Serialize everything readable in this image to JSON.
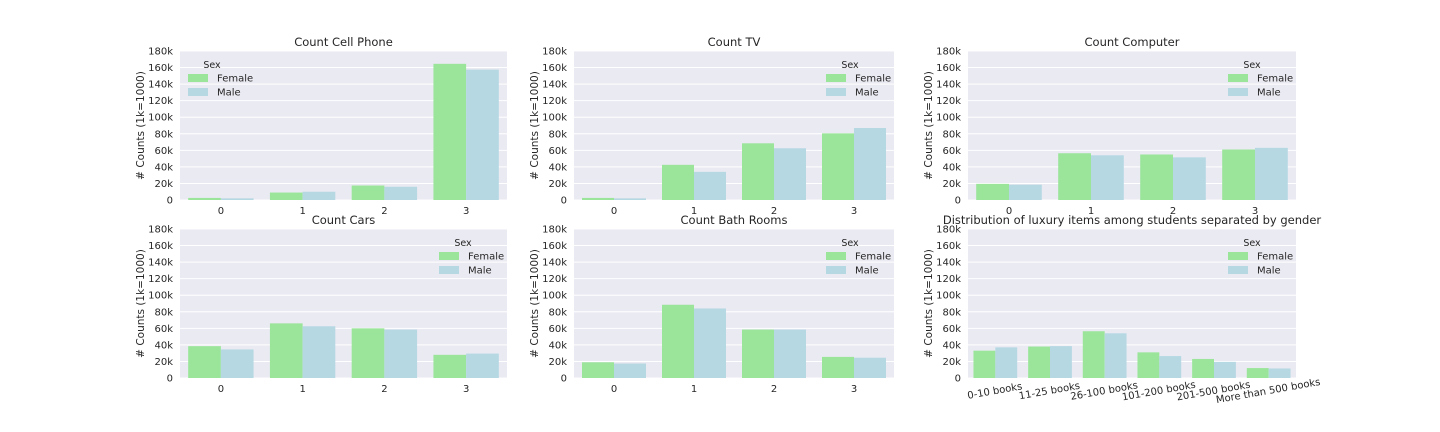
{
  "colors": {
    "female": "#9be59b",
    "male": "#b5d8e3",
    "plot_bg": "#eaeaf2",
    "grid": "#ffffff",
    "text": "#262626"
  },
  "chart_data": [
    {
      "type": "bar",
      "title": "Count Cell Phone",
      "ylabel": "# Counts (1k=1000)",
      "xlabel": "",
      "ylim": [
        0,
        180000
      ],
      "yticks": [
        0,
        20000,
        40000,
        60000,
        80000,
        100000,
        120000,
        140000,
        160000,
        180000
      ],
      "yticklabels": [
        "0",
        "20k",
        "40k",
        "60k",
        "80k",
        "100k",
        "120k",
        "140k",
        "160k",
        "180k"
      ],
      "categories": [
        "0",
        "1",
        "2",
        "3"
      ],
      "legend": {
        "title": "Sex",
        "position": "top-left"
      },
      "series": [
        {
          "name": "Female",
          "values": [
            2500,
            9000,
            17500,
            164500
          ]
        },
        {
          "name": "Male",
          "values": [
            2000,
            10000,
            16000,
            157500
          ]
        }
      ]
    },
    {
      "type": "bar",
      "title": "Count TV",
      "ylabel": "# Counts (1k=1000)",
      "xlabel": "",
      "ylim": [
        0,
        180000
      ],
      "yticks": [
        0,
        20000,
        40000,
        60000,
        80000,
        100000,
        120000,
        140000,
        160000,
        180000
      ],
      "yticklabels": [
        "0",
        "20k",
        "40k",
        "60k",
        "80k",
        "100k",
        "120k",
        "140k",
        "160k",
        "180k"
      ],
      "categories": [
        "0",
        "1",
        "2",
        "3"
      ],
      "legend": {
        "title": "Sex",
        "position": "top-right"
      },
      "series": [
        {
          "name": "Female",
          "values": [
            2500,
            42500,
            68500,
            80500
          ]
        },
        {
          "name": "Male",
          "values": [
            2000,
            34000,
            62500,
            87000
          ]
        }
      ]
    },
    {
      "type": "bar",
      "title": "Count Computer",
      "ylabel": "# Counts (1k=1000)",
      "xlabel": "",
      "ylim": [
        0,
        180000
      ],
      "yticks": [
        0,
        20000,
        40000,
        60000,
        80000,
        100000,
        120000,
        140000,
        160000,
        180000
      ],
      "yticklabels": [
        "0",
        "20k",
        "40k",
        "60k",
        "80k",
        "100k",
        "120k",
        "140k",
        "160k",
        "180k"
      ],
      "categories": [
        "0",
        "1",
        "2",
        "3"
      ],
      "legend": {
        "title": "Sex",
        "position": "top-right"
      },
      "series": [
        {
          "name": "Female",
          "values": [
            19500,
            56500,
            55000,
            61000
          ]
        },
        {
          "name": "Male",
          "values": [
            18500,
            54000,
            51500,
            63000
          ]
        }
      ]
    },
    {
      "type": "bar",
      "title": "Count Cars",
      "ylabel": "# Counts (1k=1000)",
      "xlabel": "",
      "ylim": [
        0,
        180000
      ],
      "yticks": [
        0,
        20000,
        40000,
        60000,
        80000,
        100000,
        120000,
        140000,
        160000,
        180000
      ],
      "yticklabels": [
        "0",
        "20k",
        "40k",
        "60k",
        "80k",
        "100k",
        "120k",
        "140k",
        "160k",
        "180k"
      ],
      "categories": [
        "0",
        "1",
        "2",
        "3"
      ],
      "legend": {
        "title": "Sex",
        "position": "top-right"
      },
      "series": [
        {
          "name": "Female",
          "values": [
            38500,
            66000,
            60000,
            28000
          ]
        },
        {
          "name": "Male",
          "values": [
            34500,
            62500,
            58500,
            29500
          ]
        }
      ]
    },
    {
      "type": "bar",
      "title": "Count Bath Rooms",
      "ylabel": "# Counts (1k=1000)",
      "xlabel": "",
      "ylim": [
        0,
        180000
      ],
      "yticks": [
        0,
        20000,
        40000,
        60000,
        80000,
        100000,
        120000,
        140000,
        160000,
        180000
      ],
      "yticklabels": [
        "0",
        "20k",
        "40k",
        "60k",
        "80k",
        "100k",
        "120k",
        "140k",
        "160k",
        "180k"
      ],
      "categories": [
        "0",
        "1",
        "2",
        "3"
      ],
      "legend": {
        "title": "Sex",
        "position": "top-right"
      },
      "series": [
        {
          "name": "Female",
          "values": [
            19000,
            88500,
            58500,
            25500
          ]
        },
        {
          "name": "Male",
          "values": [
            17500,
            84000,
            58500,
            24500
          ]
        }
      ]
    },
    {
      "type": "bar",
      "title": "Distribution of luxury items among students separated by gender",
      "ylabel": "# Counts (1k=1000)",
      "xlabel": "",
      "ylim": [
        0,
        180000
      ],
      "yticks": [
        0,
        20000,
        40000,
        60000,
        80000,
        100000,
        120000,
        140000,
        160000,
        180000
      ],
      "yticklabels": [
        "0",
        "20k",
        "40k",
        "60k",
        "80k",
        "100k",
        "120k",
        "140k",
        "160k",
        "180k"
      ],
      "categories": [
        "0-10 books",
        "11-25 books",
        "26-100 books",
        "101-200 books",
        "201-500 books",
        "More than 500 books"
      ],
      "rotate_xticks": true,
      "legend": {
        "title": "Sex",
        "position": "top-right"
      },
      "series": [
        {
          "name": "Female",
          "values": [
            33000,
            38000,
            56500,
            31000,
            23000,
            12000
          ]
        },
        {
          "name": "Male",
          "values": [
            37000,
            38500,
            54000,
            26500,
            19500,
            11500
          ]
        }
      ]
    }
  ]
}
